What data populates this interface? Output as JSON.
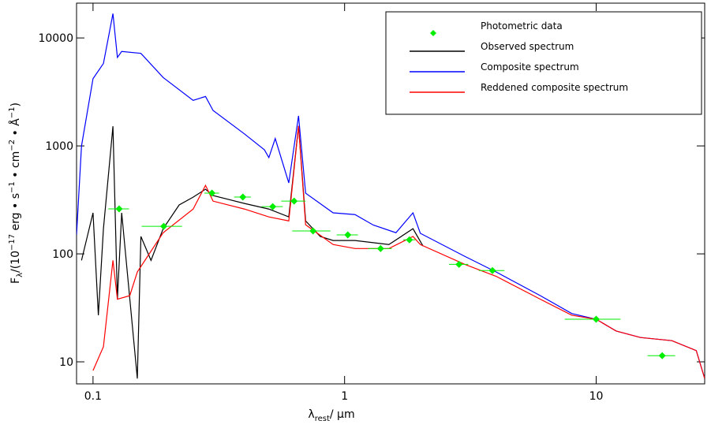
{
  "chart_data": {
    "type": "line",
    "x_label": [
      "λ",
      "rest",
      "/ μm"
    ],
    "y_label": [
      "F",
      "λ",
      "/(10",
      "−17",
      " erg • s",
      "−1",
      " • cm",
      "−2",
      " • Å",
      "−1",
      ")"
    ],
    "xlim": [
      0.086,
      27
    ],
    "ylim": [
      6.25,
      21000
    ],
    "xticks": [
      0.1,
      1,
      10
    ],
    "yticks": [
      10,
      100,
      1000,
      10000
    ],
    "xscale": "log",
    "yscale": "log",
    "legend": "upper right",
    "series": [
      {
        "name": "Photometric data",
        "type": "scatter",
        "color": "#00ee00",
        "x": [
          0.127,
          0.191,
          0.297,
          0.394,
          0.518,
          0.63,
          0.749,
          1.03,
          1.39,
          1.81,
          2.85,
          3.87,
          10.0,
          18.3
        ],
        "xerr": [
          0.012,
          0.035,
          0.02,
          0.03,
          0.05,
          0.07,
          0.13,
          0.1,
          0.15,
          0.1,
          0.25,
          0.45,
          2.5,
          2.3
        ],
        "values": [
          261,
          180,
          365,
          336,
          274,
          308,
          163,
          150,
          112,
          135,
          80,
          70,
          24.8,
          11.4
        ]
      },
      {
        "name": "Observed spectrum",
        "type": "line",
        "color": "#000000",
        "x": [
          0.09,
          0.1,
          0.105,
          0.11,
          0.12,
          0.125,
          0.13,
          0.15,
          0.155,
          0.17,
          0.19,
          0.22,
          0.25,
          0.28,
          0.3,
          0.4,
          0.5,
          0.6,
          0.656,
          0.7,
          0.8,
          0.9,
          1.1,
          1.5,
          1.87,
          2.05
        ],
        "values": [
          87,
          240,
          27,
          171,
          1520,
          38,
          240,
          7,
          145,
          87,
          171,
          284,
          335,
          397,
          347,
          293,
          260,
          220,
          1530,
          202,
          145,
          133,
          133,
          122,
          171,
          118
        ]
      },
      {
        "name": "Composite spectrum",
        "type": "line",
        "color": "#0000ff",
        "x": [
          0.086,
          0.09,
          0.1,
          0.11,
          0.12,
          0.125,
          0.13,
          0.155,
          0.19,
          0.25,
          0.28,
          0.3,
          0.4,
          0.48,
          0.5,
          0.53,
          0.6,
          0.656,
          0.7,
          0.9,
          1.1,
          1.3,
          1.6,
          1.87,
          2.0,
          3,
          4,
          6,
          8,
          10,
          12,
          15,
          20,
          25,
          27
        ],
        "values": [
          150,
          1000,
          4200,
          5800,
          16800,
          6600,
          7500,
          7200,
          4300,
          2640,
          2870,
          2130,
          1290,
          920,
          780,
          1170,
          454,
          1900,
          365,
          240,
          231,
          185,
          157,
          240,
          155,
          95,
          68,
          41,
          28,
          24.8,
          19.3,
          16.8,
          15.7,
          12.7,
          7
        ]
      },
      {
        "name": "Reddened composite spectrum",
        "type": "line",
        "color": "#ff0000",
        "x": [
          0.1,
          0.11,
          0.12,
          0.125,
          0.14,
          0.15,
          0.19,
          0.25,
          0.28,
          0.3,
          0.4,
          0.5,
          0.6,
          0.656,
          0.7,
          0.9,
          1.1,
          1.5,
          1.87,
          2.0,
          3,
          4,
          6,
          8,
          10,
          12,
          15,
          20,
          25,
          27
        ],
        "values": [
          8.3,
          13.8,
          87,
          38,
          41,
          68,
          157,
          260,
          431,
          308,
          260,
          220,
          202,
          1530,
          186,
          122,
          112,
          112,
          145,
          122,
          80,
          62,
          38,
          27,
          24.8,
          19.3,
          16.8,
          15.7,
          12.7,
          7
        ]
      }
    ]
  }
}
